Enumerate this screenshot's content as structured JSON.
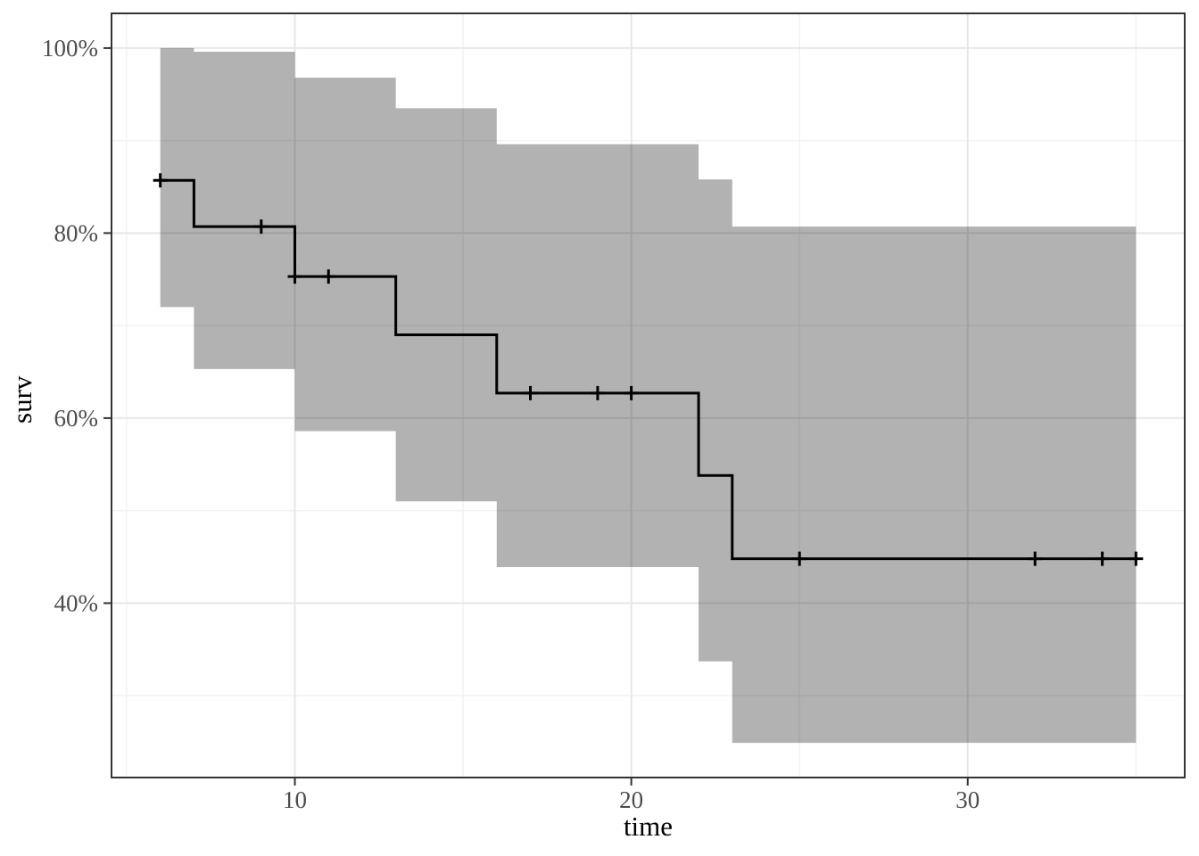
{
  "figure": {
    "kind": "kaplan-meier-survival-plot",
    "theme": "ggplot2-theme-bw"
  },
  "chart_data": {
    "type": "line",
    "line_style": "step-after",
    "title": "",
    "xlabel": "time",
    "ylabel": "surv",
    "xlim": [
      4.55,
      36.45
    ],
    "ylim": [
      0.2115,
      1.0375
    ],
    "x_major_ticks": [
      10,
      20,
      30
    ],
    "x_tick_labels": [
      "10",
      "20",
      "30"
    ],
    "x_minor_ticks": [
      5,
      15,
      25,
      35
    ],
    "y_major_ticks": [
      1.0,
      0.8,
      0.6,
      0.4
    ],
    "y_tick_labels": [
      "100%",
      "80%",
      "60%",
      "40%"
    ],
    "y_minor_ticks": [
      0.9,
      0.7,
      0.5,
      0.3
    ],
    "grid": true,
    "legend": false,
    "series": [
      {
        "name": "survival-estimate",
        "start_time": 6,
        "end_time": 35,
        "event_times": [
          6,
          7,
          10,
          13,
          16,
          22,
          23
        ],
        "survival": [
          0.857,
          0.807,
          0.753,
          0.69,
          0.627,
          0.538,
          0.448
        ],
        "ci_upper": [
          1.0,
          0.996,
          0.968,
          0.935,
          0.896,
          0.858,
          0.807
        ],
        "ci_lower": [
          0.72,
          0.653,
          0.586,
          0.51,
          0.439,
          0.337,
          0.249
        ],
        "censor_marks": [
          {
            "time": 6,
            "surv": 0.857
          },
          {
            "time": 9,
            "surv": 0.807
          },
          {
            "time": 10,
            "surv": 0.753
          },
          {
            "time": 11,
            "surv": 0.753
          },
          {
            "time": 17,
            "surv": 0.627
          },
          {
            "time": 19,
            "surv": 0.627
          },
          {
            "time": 20,
            "surv": 0.627
          },
          {
            "time": 25,
            "surv": 0.448
          },
          {
            "time": 32,
            "surv": 0.448
          },
          {
            "time": 34,
            "surv": 0.448
          },
          {
            "time": 35,
            "surv": 0.448
          }
        ]
      }
    ],
    "colors": {
      "curve": "#000000",
      "ribbon": "rgba(0,0,0,0.30)",
      "grid_major": "#e7e7e7",
      "grid_minor": "#f2f2f2",
      "panel_border": "#333333",
      "tick": "#333333",
      "tick_label": "#4d4d4d",
      "axis_title": "#000000",
      "background": "#ffffff"
    }
  }
}
